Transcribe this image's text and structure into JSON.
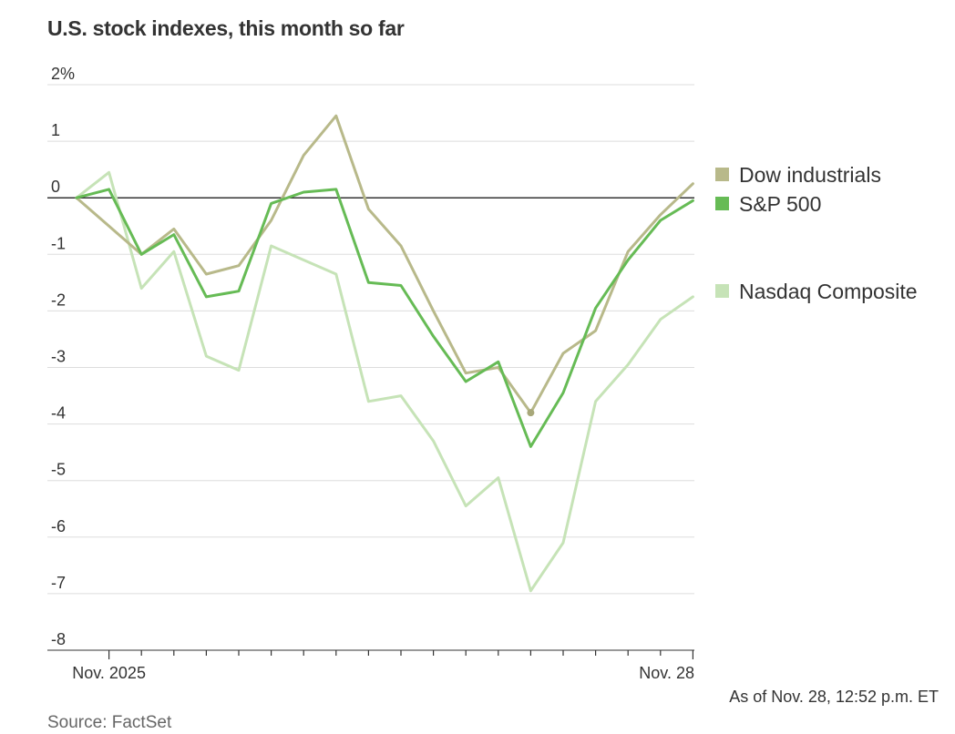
{
  "title": "U.S. stock indexes, this month so far",
  "source": "Source: FactSet",
  "as_of": "As of Nov. 28, 12:52 p.m. ET",
  "chart_data": {
    "type": "line",
    "ylim": [
      -8,
      2
    ],
    "y_ticks": [
      {
        "value": 2,
        "label": "2%"
      },
      {
        "value": 1,
        "label": "1"
      },
      {
        "value": 0,
        "label": "0"
      },
      {
        "value": -1,
        "label": "-1"
      },
      {
        "value": -2,
        "label": "-2"
      },
      {
        "value": -3,
        "label": "-3"
      },
      {
        "value": -4,
        "label": "-4"
      },
      {
        "value": -5,
        "label": "-5"
      },
      {
        "value": -6,
        "label": "-6"
      },
      {
        "value": -7,
        "label": "-7"
      },
      {
        "value": -8,
        "label": "-8"
      }
    ],
    "x_labels": [
      {
        "index": 1,
        "label": "Nov. 2025"
      },
      {
        "index": 19,
        "label": "Nov. 28"
      }
    ],
    "grid": true,
    "legend_position": "right",
    "series": [
      {
        "name": "Dow industrials",
        "color": "#b8b98a",
        "values": [
          0,
          -0.5,
          -1.0,
          -0.55,
          -1.35,
          -1.2,
          -0.4,
          0.75,
          1.45,
          -0.2,
          -0.85,
          -2.0,
          -3.1,
          -3.0,
          -3.8,
          -2.75,
          -2.35,
          -0.95,
          -0.3,
          0.25
        ],
        "end_marker_index": 14
      },
      {
        "name": "S&P 500",
        "color": "#66bb55",
        "values": [
          0,
          0.15,
          -1.0,
          -0.65,
          -1.75,
          -1.65,
          -0.1,
          0.1,
          0.15,
          -1.5,
          -1.55,
          -2.45,
          -3.25,
          -2.9,
          -4.4,
          -3.45,
          -1.95,
          -1.1,
          -0.4,
          -0.05
        ]
      },
      {
        "name": "Nasdaq Composite",
        "color": "#c6e3b7",
        "values": [
          0,
          0.45,
          -1.6,
          -0.95,
          -2.8,
          -3.05,
          -0.85,
          -1.1,
          -1.35,
          -3.6,
          -3.5,
          -4.3,
          -5.45,
          -4.95,
          -6.95,
          -6.1,
          -3.6,
          -2.95,
          -2.15,
          -1.75
        ]
      }
    ]
  }
}
